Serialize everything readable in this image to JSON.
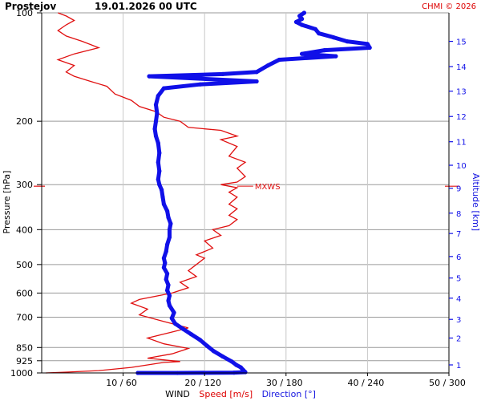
{
  "header": {
    "station": "Prostejov",
    "datetime": "19.01.2026 00 UTC",
    "credit": "CHMI © 2026"
  },
  "colors": {
    "speed": "#e01010",
    "direction": "#1010e8",
    "grid": "#9a9a9a",
    "axis": "#000000"
  },
  "chart_data": {
    "type": "line",
    "y_axis": {
      "label": "Pressure [hPa]",
      "scale": "log",
      "range": [
        100,
        1000
      ],
      "ticks": [
        100,
        200,
        300,
        400,
        500,
        600,
        700,
        850,
        925,
        1000
      ],
      "reversed": true
    },
    "x_axis": {
      "range_speed": [
        0,
        50
      ],
      "range_direction": [
        0,
        360
      ],
      "ticks": [
        {
          "speed": 10,
          "direction": 60,
          "label": "10 / 60"
        },
        {
          "speed": 20,
          "direction": 120,
          "label": "20 / 120"
        },
        {
          "speed": 30,
          "direction": 180,
          "label": "30 / 180"
        },
        {
          "speed": 40,
          "direction": 240,
          "label": "40 / 240"
        },
        {
          "speed": 50,
          "direction": 300,
          "label": "50 / 300"
        }
      ],
      "label_prefix": "WIND",
      "label_speed": "Speed [m/s]",
      "label_direction": "Direction [°]"
    },
    "right_axis": {
      "label": "Altitude [km]",
      "ticks": [
        {
          "km": "1",
          "p": 950
        },
        {
          "km": "2",
          "p": 800
        },
        {
          "km": "3",
          "p": 710
        },
        {
          "km": "4",
          "p": 620
        },
        {
          "km": "5",
          "p": 545
        },
        {
          "km": "6",
          "p": 475
        },
        {
          "km": "7",
          "p": 410
        },
        {
          "km": "8",
          "p": 360
        },
        {
          "km": "9",
          "p": 307
        },
        {
          "km": "10",
          "p": 265
        },
        {
          "km": "11",
          "p": 228
        },
        {
          "km": "12",
          "p": 194
        },
        {
          "km": "13",
          "p": 165
        },
        {
          "km": "14",
          "p": 141
        },
        {
          "km": "15",
          "p": 120
        }
      ]
    },
    "annotation": {
      "text": "MXWS",
      "pressure": 303,
      "speed": 24
    },
    "series": [
      {
        "name": "Speed [m/s]",
        "unit": "m/s",
        "points": [
          [
            0.5,
            1000
          ],
          [
            3,
            995
          ],
          [
            7,
            985
          ],
          [
            11,
            965
          ],
          [
            15,
            935
          ],
          [
            17,
            930
          ],
          [
            13,
            910
          ],
          [
            16,
            885
          ],
          [
            18,
            855
          ],
          [
            15,
            830
          ],
          [
            13,
            800
          ],
          [
            16,
            770
          ],
          [
            18,
            750
          ],
          [
            15,
            720
          ],
          [
            12,
            690
          ],
          [
            13,
            665
          ],
          [
            11,
            640
          ],
          [
            12,
            625
          ],
          [
            16,
            600
          ],
          [
            18,
            580
          ],
          [
            17,
            560
          ],
          [
            19,
            540
          ],
          [
            18,
            520
          ],
          [
            19,
            500
          ],
          [
            20,
            480
          ],
          [
            19,
            470
          ],
          [
            21,
            450
          ],
          [
            20,
            430
          ],
          [
            22,
            415
          ],
          [
            21,
            400
          ],
          [
            23,
            390
          ],
          [
            24,
            375
          ],
          [
            23,
            365
          ],
          [
            24,
            350
          ],
          [
            23,
            340
          ],
          [
            24,
            325
          ],
          [
            23,
            315
          ],
          [
            24,
            306
          ],
          [
            22,
            300
          ],
          [
            24,
            295
          ],
          [
            25,
            285
          ],
          [
            24,
            270
          ],
          [
            25,
            260
          ],
          [
            23,
            250
          ],
          [
            24,
            235
          ],
          [
            22,
            225
          ],
          [
            24,
            220
          ],
          [
            22,
            212
          ],
          [
            18,
            208
          ],
          [
            17,
            200
          ],
          [
            15,
            195
          ],
          [
            14,
            188
          ],
          [
            12,
            182
          ],
          [
            11,
            175
          ],
          [
            9,
            168
          ],
          [
            8,
            160
          ],
          [
            6,
            155
          ],
          [
            4,
            150
          ],
          [
            3,
            146
          ],
          [
            4,
            140
          ],
          [
            2,
            135
          ],
          [
            4,
            130
          ],
          [
            7,
            125
          ],
          [
            5,
            120
          ],
          [
            3,
            116
          ],
          [
            2,
            112
          ],
          [
            3,
            108
          ],
          [
            4,
            105
          ],
          [
            3,
            102
          ],
          [
            2,
            100
          ]
        ]
      },
      {
        "name": "Direction [°]",
        "unit": "°",
        "points": [
          [
            85,
            1000
          ],
          [
            120,
            1000
          ],
          [
            170,
            998
          ],
          [
            180,
            995
          ],
          [
            178,
            980
          ],
          [
            176,
            965
          ],
          [
            172,
            950
          ],
          [
            168,
            930
          ],
          [
            160,
            900
          ],
          [
            152,
            870
          ],
          [
            146,
            840
          ],
          [
            140,
            810
          ],
          [
            132,
            780
          ],
          [
            125,
            755
          ],
          [
            118,
            730
          ],
          [
            115,
            705
          ],
          [
            117,
            680
          ],
          [
            113,
            650
          ],
          [
            112,
            630
          ],
          [
            113,
            610
          ],
          [
            111,
            590
          ],
          [
            112,
            570
          ],
          [
            110,
            550
          ],
          [
            111,
            530
          ],
          [
            108,
            510
          ],
          [
            109,
            495
          ],
          [
            108,
            480
          ],
          [
            110,
            460
          ],
          [
            111,
            440
          ],
          [
            113,
            420
          ],
          [
            113,
            400
          ],
          [
            114,
            385
          ],
          [
            112,
            370
          ],
          [
            111,
            355
          ],
          [
            108,
            340
          ],
          [
            107,
            325
          ],
          [
            106,
            310
          ],
          [
            104,
            300
          ],
          [
            103,
            290
          ],
          [
            104,
            275
          ],
          [
            103,
            260
          ],
          [
            104,
            245
          ],
          [
            103,
            230
          ],
          [
            101,
            220
          ],
          [
            100,
            210
          ],
          [
            101,
            200
          ],
          [
            102,
            190
          ],
          [
            101,
            180
          ],
          [
            103,
            170
          ],
          [
            108,
            162
          ],
          [
            140,
            158
          ],
          [
            190,
            155
          ],
          [
            95,
            150
          ],
          [
            160,
            148
          ],
          [
            190,
            146
          ],
          [
            200,
            140
          ],
          [
            210,
            135
          ],
          [
            260,
            132
          ],
          [
            230,
            130
          ],
          [
            250,
            127
          ],
          [
            290,
            125
          ],
          [
            288,
            122
          ],
          [
            270,
            120
          ],
          [
            258,
            117
          ],
          [
            245,
            114
          ],
          [
            242,
            111
          ],
          [
            230,
            108
          ],
          [
            225,
            106
          ],
          [
            230,
            104
          ],
          [
            228,
            102
          ],
          [
            232,
            100
          ]
        ]
      }
    ]
  }
}
